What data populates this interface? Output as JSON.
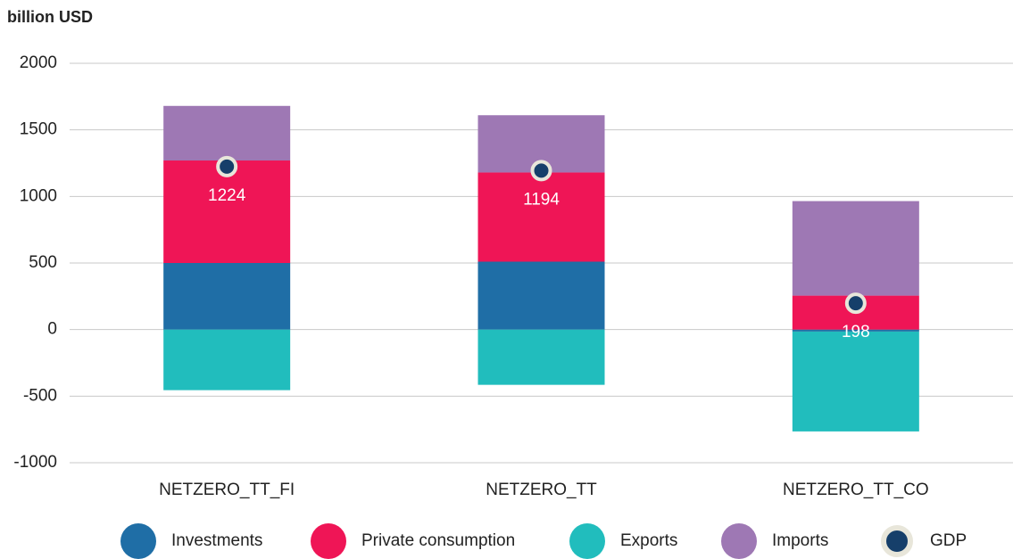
{
  "chart_data": {
    "type": "stacked_bar",
    "y_label": "billion USD",
    "categories": [
      "NETZERO_TT_FI",
      "NETZERO_TT",
      "NETZERO_TT_CO"
    ],
    "series": [
      {
        "name": "Investments",
        "color": "#1f6ea6",
        "values": [
          500,
          510,
          -15
        ]
      },
      {
        "name": "Private consumption",
        "color": "#ef1556",
        "values": [
          770,
          670,
          255
        ]
      },
      {
        "name": "Exports",
        "color": "#21bdbd",
        "values": [
          -455,
          -415,
          -750
        ]
      },
      {
        "name": "Imports",
        "color": "#9e78b4",
        "values": [
          410,
          430,
          710
        ]
      },
      {
        "name": "GDP",
        "color": "#163f6a",
        "type": "dot",
        "values": [
          1224,
          1194,
          198
        ]
      }
    ],
    "ylim": [
      -1000,
      2000
    ],
    "yticks": [
      -1000,
      -500,
      0,
      500,
      1000,
      1500,
      2000
    ],
    "grid": true
  }
}
